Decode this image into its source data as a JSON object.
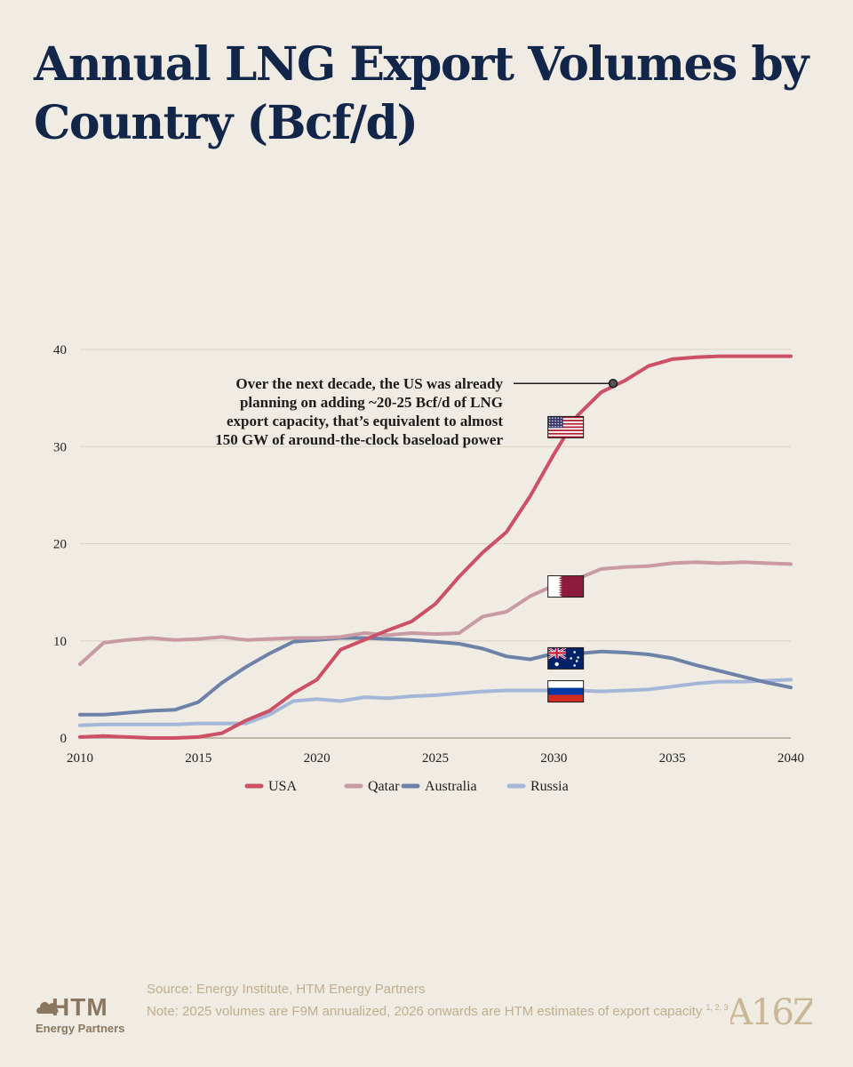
{
  "title": "Annual LNG Export Volumes by Country (Bcf/d)",
  "chart_data": {
    "type": "line",
    "title": "Annual LNG Export Volumes by Country (Bcf/d)",
    "xlabel": "",
    "ylabel": "",
    "xlim": [
      2010,
      2040
    ],
    "ylim": [
      0,
      40
    ],
    "x_ticks": [
      "2010",
      "2015",
      "2020",
      "2025",
      "2030",
      "2035",
      "2040"
    ],
    "y_ticks": [
      "0",
      "10",
      "20",
      "30",
      "40"
    ],
    "grid": "horizontal",
    "x": [
      2010,
      2011,
      2012,
      2013,
      2014,
      2015,
      2016,
      2017,
      2018,
      2019,
      2020,
      2021,
      2022,
      2023,
      2024,
      2025,
      2026,
      2027,
      2028,
      2029,
      2030,
      2031,
      2032,
      2033,
      2034,
      2035,
      2036,
      2037,
      2038,
      2039,
      2040
    ],
    "series": [
      {
        "name": "USA",
        "color": "#cc5066",
        "values": [
          0.1,
          0.2,
          0.1,
          0.0,
          0.0,
          0.1,
          0.5,
          1.8,
          2.8,
          4.6,
          6.0,
          9.1,
          10.1,
          11.1,
          12.0,
          13.8,
          16.6,
          19.1,
          21.2,
          24.9,
          29.2,
          33.2,
          35.6,
          36.8,
          38.3,
          39.0,
          39.2,
          39.3,
          39.3,
          39.3,
          39.3
        ]
      },
      {
        "name": "Qatar",
        "color": "#c99aa3",
        "values": [
          7.6,
          9.8,
          10.1,
          10.3,
          10.1,
          10.2,
          10.4,
          10.1,
          10.2,
          10.3,
          10.3,
          10.4,
          10.8,
          10.6,
          10.8,
          10.7,
          10.8,
          12.5,
          13.0,
          14.6,
          15.7,
          16.4,
          17.4,
          17.6,
          17.7,
          18.0,
          18.1,
          18.0,
          18.1,
          18.0,
          17.9
        ]
      },
      {
        "name": "Australia",
        "color": "#6e82a8",
        "values": [
          2.4,
          2.4,
          2.6,
          2.8,
          2.9,
          3.7,
          5.7,
          7.3,
          8.7,
          9.9,
          10.1,
          10.3,
          10.3,
          10.2,
          10.1,
          9.9,
          9.7,
          9.2,
          8.4,
          8.1,
          8.7,
          8.7,
          8.9,
          8.8,
          8.6,
          8.2,
          7.5,
          6.9,
          6.3,
          5.7,
          5.2
        ]
      },
      {
        "name": "Russia",
        "color": "#a5b7d8",
        "values": [
          1.3,
          1.4,
          1.4,
          1.4,
          1.4,
          1.5,
          1.5,
          1.5,
          2.4,
          3.8,
          4.0,
          3.8,
          4.2,
          4.1,
          4.3,
          4.4,
          4.6,
          4.8,
          4.9,
          4.9,
          4.9,
          4.9,
          4.8,
          4.9,
          5.0,
          5.3,
          5.6,
          5.8,
          5.8,
          5.9,
          6.0
        ]
      }
    ],
    "legend": [
      "USA",
      "Qatar",
      "Australia",
      "Russia"
    ],
    "legend_position": "bottom-center",
    "annotation": {
      "lines": [
        "Over the next decade, the US was already",
        "planning on adding ~20-25 Bcf/d of LNG",
        "export capacity, that’s equivalent to almost",
        "150 GW of around-the-clock baseload power"
      ],
      "point": [
        2032.5,
        36.5
      ]
    },
    "flags": [
      {
        "country": "USA",
        "x": 2030.5,
        "y": 32.0
      },
      {
        "country": "Qatar",
        "x": 2030.5,
        "y": 15.6
      },
      {
        "country": "Australia",
        "x": 2030.5,
        "y": 8.2
      },
      {
        "country": "Russia",
        "x": 2030.5,
        "y": 4.8
      }
    ]
  },
  "footer": {
    "source": "Source: Energy Institute, HTM Energy Partners",
    "note": "Note: 2025 volumes are F9M annualized, 2026 onwards are HTM estimates of export capacity",
    "note_refs": "1, 2, 3"
  },
  "logos": {
    "htm_main": "HTM",
    "htm_sub": "Energy Partners",
    "a16z": "A16Z"
  }
}
